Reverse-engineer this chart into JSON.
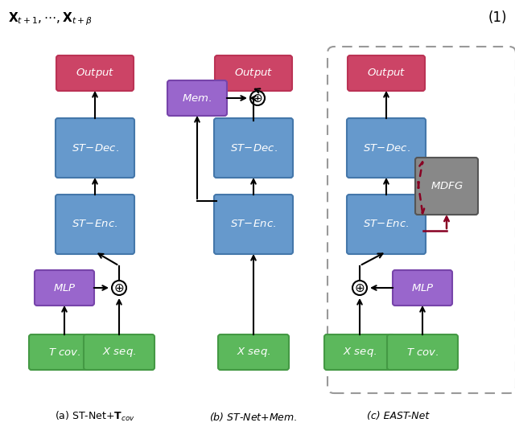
{
  "title_text": "$\\mathbf{X}_{t+1},\\cdots,\\mathbf{X}_{t+\\beta}$",
  "eq_label": "(1)",
  "colors": {
    "green": "#5cb85c",
    "blue": "#6699cc",
    "purple": "#9966cc",
    "pink": "#cc4466",
    "gray": "#888888",
    "dark_red": "#880022"
  },
  "caption_a": "(a) ST-Net+$\\mathbf{T}_{cov}$",
  "caption_b": "(b) ST-Net+$\\mathit{Mem.}$",
  "caption_c": "(c) EAST-Net"
}
